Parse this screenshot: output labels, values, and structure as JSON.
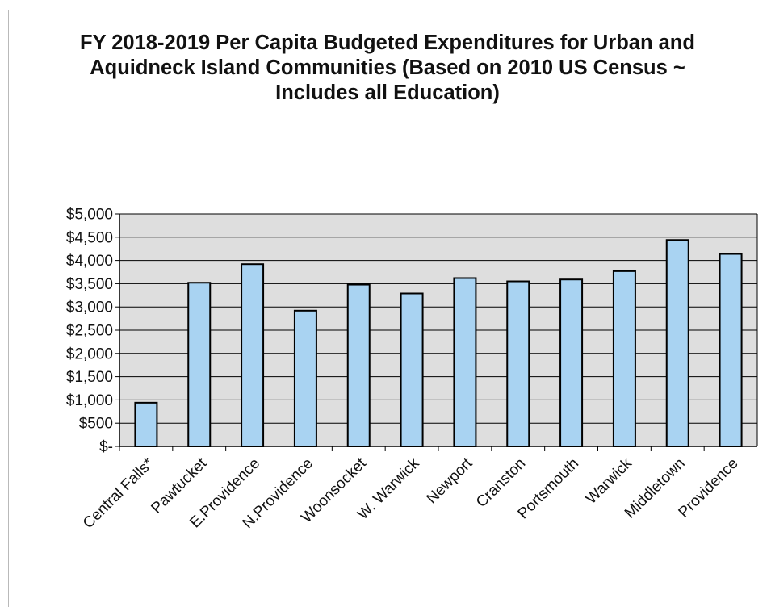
{
  "chart_data": {
    "type": "bar",
    "title": "FY 2018-2019 Per Capita Budgeted Expenditures for Urban and Aquidneck Island Communities (Based on 2010 US Census ~ Includes all Education)",
    "xlabel": "",
    "ylabel": "",
    "categories": [
      "Central Falls*",
      "Pawtucket",
      "E.Providence",
      "N.Providence",
      "Woonsocket",
      "W. Warwick",
      "Newport",
      "Cranston",
      "Portsmouth",
      "Warwick",
      "Middletown",
      "Providence"
    ],
    "values": [
      940,
      3520,
      3920,
      2920,
      3480,
      3290,
      3620,
      3550,
      3590,
      3770,
      4440,
      4140
    ],
    "ylim": [
      0,
      5000
    ],
    "yticks": [
      0,
      500,
      1000,
      1500,
      2000,
      2500,
      3000,
      3500,
      4000,
      4500,
      5000
    ],
    "ytick_labels": [
      "$-",
      "$500",
      "$1,000",
      "$1,500",
      "$2,000",
      "$2,500",
      "$3,000",
      "$3,500",
      "$4,000",
      "$4,500",
      "$5,000"
    ],
    "grid": true,
    "legend": "none",
    "bar_color": "#a9d3f2",
    "bar_edge_color": "#000000",
    "plot_background": "#dedede"
  }
}
